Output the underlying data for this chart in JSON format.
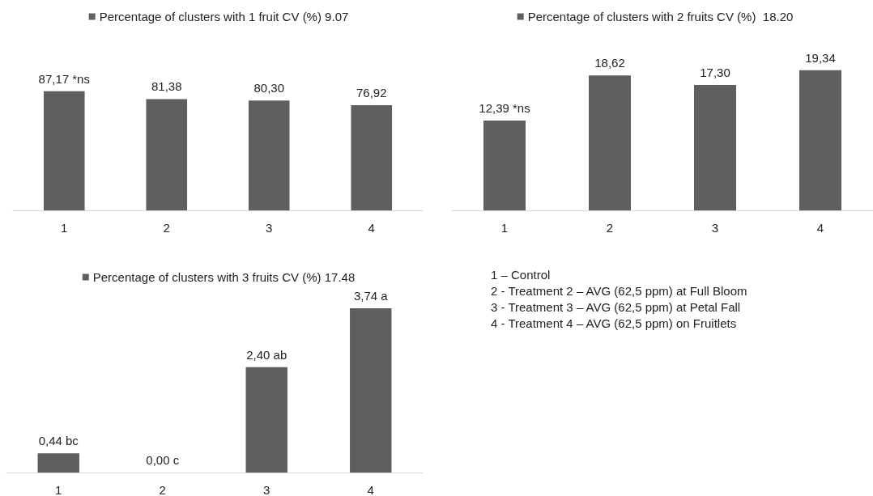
{
  "chart_data": [
    {
      "type": "bar",
      "categories": [
        "1",
        "2",
        "3",
        "4"
      ],
      "legend": "top",
      "tick_labels": "x",
      "series": [
        {
          "name": "Percentage of clusters with 1 fruit CV (%) 9.07",
          "color": "#5f5f5f",
          "values": [
            87.17,
            81.38,
            80.3,
            76.92
          ],
          "value_labels": [
            "87,17 *ns",
            "81,38",
            "80,30",
            "76,92"
          ]
        }
      ]
    },
    {
      "type": "bar",
      "categories": [
        "1",
        "2",
        "3",
        "4"
      ],
      "legend": "top",
      "tick_labels": "x",
      "series": [
        {
          "name": "Percentage of clusters with 2 fruits CV (%)  18.20",
          "color": "#5f5f5f",
          "values": [
            12.39,
            18.62,
            17.3,
            19.34
          ],
          "value_labels": [
            "12,39 *ns",
            "18,62",
            "17,30",
            "19,34"
          ]
        }
      ]
    },
    {
      "type": "bar",
      "categories": [
        "1",
        "2",
        "3",
        "4"
      ],
      "legend": "top",
      "tick_labels": "x",
      "series": [
        {
          "name": "Percentage of clusters with 3 fruits CV (%) 17.48",
          "color": "#5f5f5f",
          "values": [
            0.44,
            0.0,
            2.4,
            3.74
          ],
          "value_labels": [
            "0,44 bc",
            "0,00 c",
            "2,40 ab",
            "3,74 a"
          ]
        }
      ]
    },
    {
      "type": "other",
      "annotations": [
        "1 – Control",
        "2 - Treatment 2 – AVG (62,5 ppm) at Full Bloom",
        "3 - Treatment 3 – AVG (62,5 ppm) at Petal Fall",
        "4 - Treatment 4 – AVG (62,5 ppm) on Fruitlets"
      ]
    }
  ]
}
